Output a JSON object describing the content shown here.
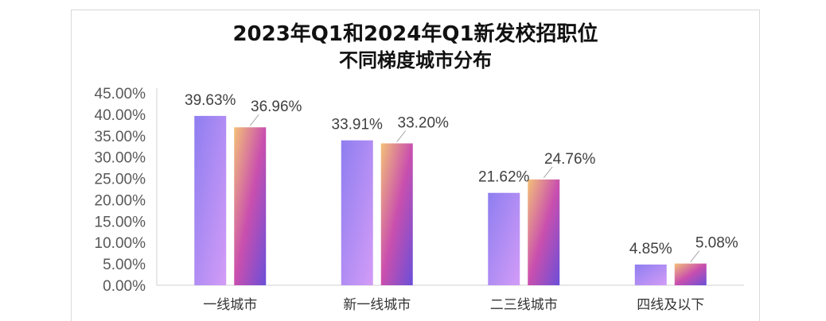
{
  "chart_data": {
    "type": "bar",
    "title": "2023年Q1和2024年Q1新发校招职位",
    "subtitle": "不同梯度城市分布",
    "categories": [
      "一线城市",
      "新一线城市",
      "二三线城市",
      "四线及以下"
    ],
    "series": [
      {
        "values": [
          39.63,
          33.91,
          21.62,
          4.85
        ],
        "labels": [
          "39.63%",
          "33.91%",
          "21.62%",
          "4.85%"
        ],
        "color": "#b58cf5"
      },
      {
        "values": [
          36.96,
          33.2,
          24.76,
          5.08
        ],
        "labels": [
          "36.96%",
          "33.20%",
          "24.76%",
          "5.08%"
        ],
        "color": "#c04fb0"
      }
    ],
    "ylim": [
      0,
      45
    ],
    "yticks": [
      "0.00%",
      "5.00%",
      "10.00%",
      "15.00%",
      "20.00%",
      "25.00%",
      "30.00%",
      "35.00%",
      "40.00%",
      "45.00%"
    ],
    "grid": false,
    "legend": "none"
  }
}
